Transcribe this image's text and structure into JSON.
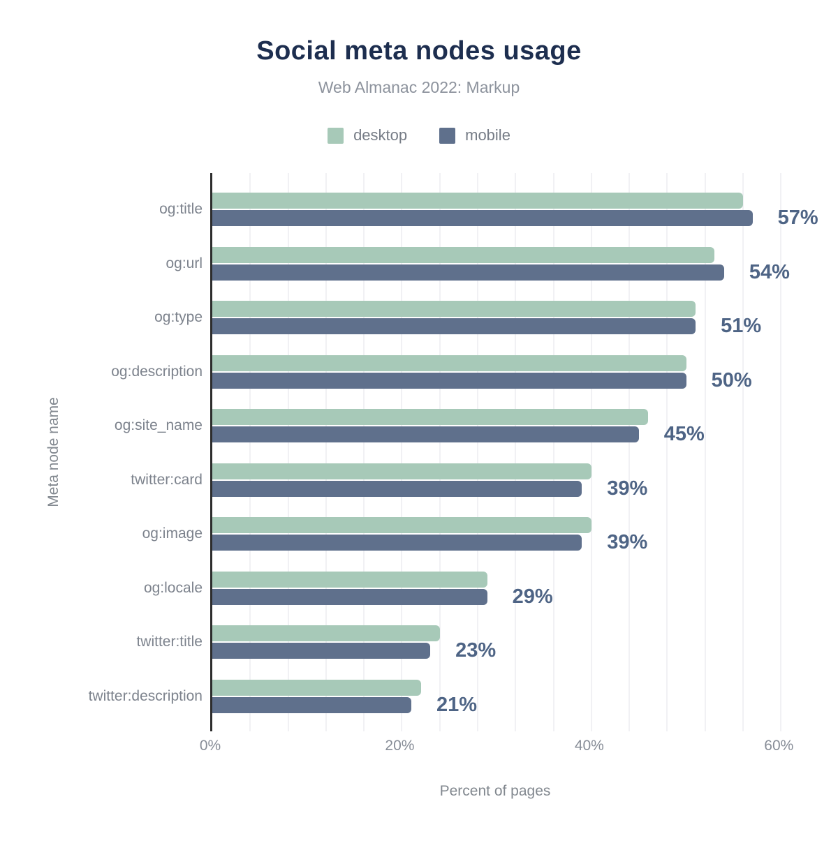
{
  "title": "Social meta nodes usage",
  "subtitle": "Web Almanac 2022: Markup",
  "legend": [
    {
      "label": "desktop",
      "color": "#a7c9b8"
    },
    {
      "label": "mobile",
      "color": "#5f708c"
    }
  ],
  "chart_data": {
    "type": "bar",
    "orientation": "horizontal",
    "title": "Social meta nodes usage",
    "subtitle": "Web Almanac 2022: Markup",
    "categories": [
      "og:title",
      "og:url",
      "og:type",
      "og:description",
      "og:site_name",
      "twitter:card",
      "og:image",
      "og:locale",
      "twitter:title",
      "twitter:description"
    ],
    "series": [
      {
        "name": "desktop",
        "color": "#a7c9b8",
        "values": [
          56,
          53,
          51,
          50,
          46,
          40,
          40,
          29,
          24,
          22
        ]
      },
      {
        "name": "mobile",
        "color": "#5f708c",
        "values": [
          57,
          54,
          51,
          50,
          45,
          39,
          39,
          29,
          23,
          21
        ]
      }
    ],
    "value_labels": [
      "57%",
      "54%",
      "51%",
      "50%",
      "45%",
      "39%",
      "39%",
      "29%",
      "23%",
      "21%"
    ],
    "xlabel": "Percent of pages",
    "ylabel": "Meta node name",
    "x_ticks": [
      "0%",
      "20%",
      "40%",
      "60%"
    ],
    "x_tick_values": [
      0,
      20,
      40,
      60
    ],
    "xlim": [
      0,
      63
    ],
    "gridline_interval": 4,
    "grid": "vertical-faint",
    "legend_position": "top"
  },
  "colors": {
    "background": "#ffffff",
    "title": "#1d2e4f",
    "subtitle": "#8d939d",
    "category_label": "#7d838d",
    "value_label": "#4e6485",
    "axis_line": "#2d2d2d",
    "gridline": "#f1f1f4"
  }
}
